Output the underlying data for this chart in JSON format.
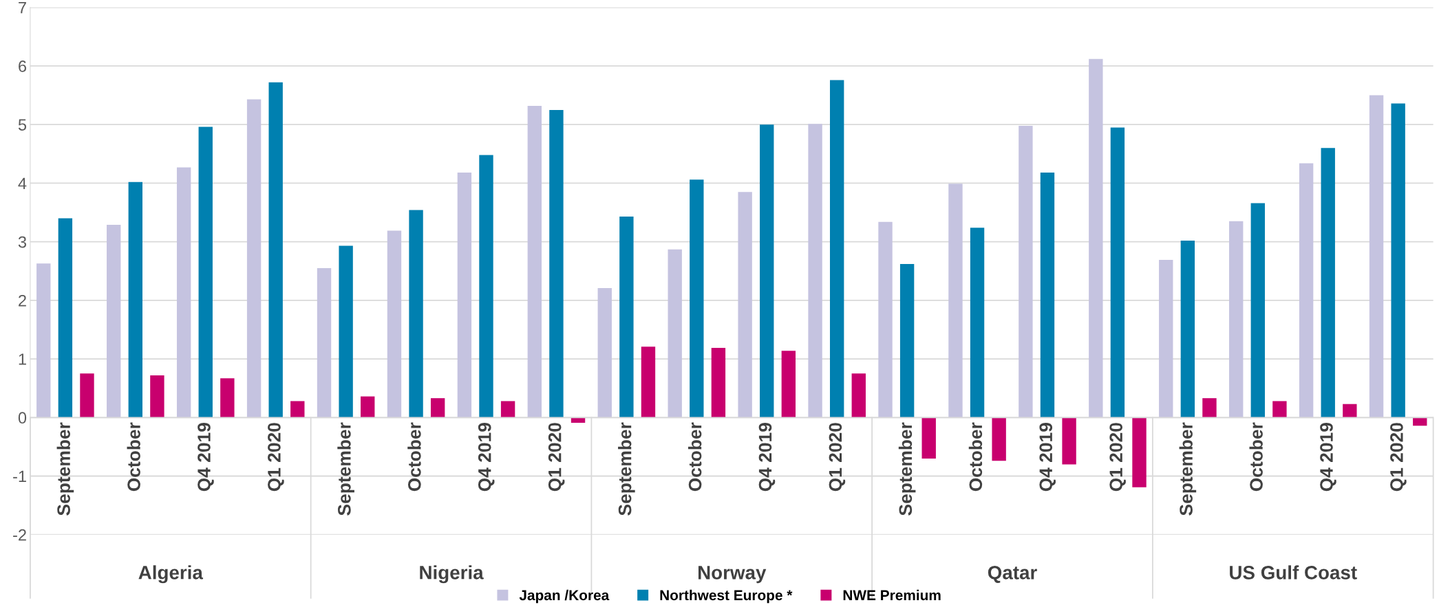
{
  "chart_data": {
    "type": "bar",
    "categories": [
      "September",
      "October",
      "Q4 2019",
      "Q1 2020",
      "September",
      "October",
      "Q4 2019",
      "Q1 2020",
      "September",
      "October",
      "Q4 2019",
      "Q1 2020",
      "September",
      "October",
      "Q4 2019",
      "Q1 2020",
      "September",
      "October",
      "Q4 2019",
      "Q1 2020"
    ],
    "annotations": [
      "Algeria",
      "Nigeria",
      "Norway",
      "Qatar",
      "US Gulf Coast"
    ],
    "series": [
      {
        "name": "Japan /Korea",
        "color": "#c5c3e0",
        "values": [
          2.63,
          3.29,
          4.27,
          5.43,
          2.55,
          3.19,
          4.18,
          5.32,
          2.21,
          2.87,
          3.85,
          5.01,
          3.34,
          3.99,
          4.98,
          6.12,
          2.69,
          3.35,
          4.34,
          5.5
        ]
      },
      {
        "name": "Northwest Europe *",
        "color": "#0080b0",
        "values": [
          3.4,
          4.02,
          4.96,
          5.72,
          2.93,
          3.54,
          4.48,
          5.25,
          3.43,
          4.06,
          5.0,
          5.76,
          2.62,
          3.24,
          4.18,
          4.95,
          3.02,
          3.66,
          4.6,
          5.36
        ]
      },
      {
        "name": "NWE Premium",
        "color": "#c8006e",
        "values": [
          0.75,
          0.72,
          0.67,
          0.28,
          0.36,
          0.33,
          0.28,
          -0.09,
          1.21,
          1.19,
          1.14,
          0.75,
          -0.7,
          -0.74,
          -0.8,
          -1.19,
          0.33,
          0.28,
          0.23,
          -0.14
        ]
      }
    ],
    "ylim": [
      -2,
      7
    ],
    "yticks": [
      -2,
      -1,
      0,
      1,
      2,
      3,
      4,
      5,
      6,
      7
    ],
    "grid": "y",
    "legend": "bottom"
  }
}
